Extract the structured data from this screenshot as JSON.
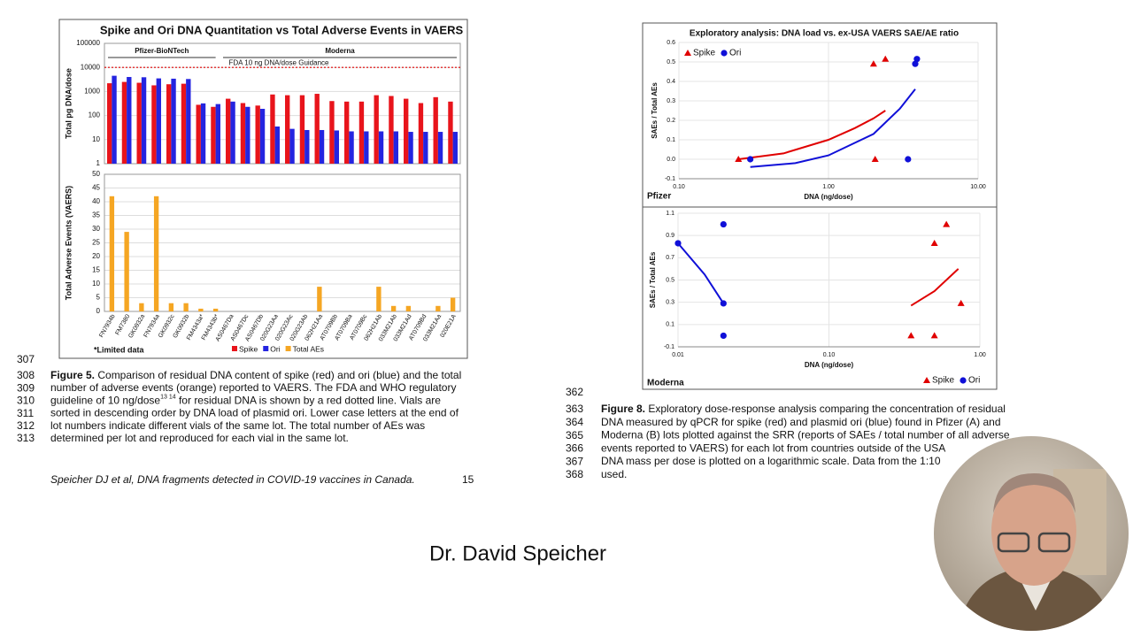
{
  "chart_data": [
    {
      "type": "bar",
      "title": "Spike and Ori DNA Quantitation vs Total Adverse Events in VAERS",
      "y_label": "Total pg DNA/dose",
      "log_scale": true,
      "grid": true,
      "ylim": [
        1,
        100000
      ],
      "yticks": [
        1,
        10,
        100,
        1000,
        10000,
        100000
      ],
      "groups": [
        "Pfizer-BioNTech",
        "Moderna"
      ],
      "reference_line": {
        "value": 10000,
        "label": "FDA 10 ng DNA/dose Guidance",
        "color": "#e00000"
      },
      "series": [
        {
          "name": "Spike",
          "color": "#e8141b",
          "values": [
            2200,
            2500,
            2300,
            1800,
            2000,
            2100,
            280,
            230,
            500,
            330,
            260,
            750,
            700,
            700,
            800,
            400,
            380,
            380,
            700,
            650,
            500,
            330,
            580,
            380
          ]
        },
        {
          "name": "Ori",
          "color": "#2424e0",
          "values": [
            4500,
            4000,
            3900,
            3500,
            3400,
            3300,
            320,
            300,
            380,
            230,
            190,
            35,
            28,
            25,
            25,
            24,
            22,
            22,
            22,
            22,
            21,
            21,
            21,
            21
          ]
        }
      ]
    },
    {
      "type": "bar",
      "y_label": "Total Adverse Events (VAERS)",
      "grid": true,
      "ylim": [
        0,
        50
      ],
      "yticks": [
        0,
        5,
        10,
        15,
        20,
        25,
        30,
        35,
        40,
        45,
        50
      ],
      "note": "*Limited data",
      "categories": [
        "FN7934b",
        "FM7380",
        "GK0932a",
        "FN7934a",
        "GK0932c",
        "GK0932b",
        "FM4343a*",
        "FM4343b*",
        "AS0467Da",
        "AS0467Dc",
        "AS0467Db",
        "020G23Aa",
        "020G23Ac",
        "020G23Ab",
        "062H21Aa",
        "AT0709Bb",
        "AT0709Ba",
        "AT0709Bc",
        "062H21Ab",
        "033M21Ab",
        "033M21Ad",
        "AT0709Bd",
        "033M21Aa",
        "020E21A"
      ],
      "series": [
        {
          "name": "Total AEs",
          "color": "#f5a623",
          "values": [
            42,
            29,
            3,
            42,
            3,
            3,
            1,
            1,
            0,
            0,
            0,
            0,
            0,
            0,
            9,
            0,
            0,
            0,
            9,
            2,
            2,
            0,
            2,
            5
          ]
        }
      ]
    },
    {
      "type": "scatter",
      "title": "Exploratory analysis: DNA load vs. ex-USA VAERS SAE/AE ratio",
      "panel": "Pfizer",
      "x_label": "DNA (ng/dose)",
      "y_label": "SAEs / Total AEs",
      "log_x": true,
      "grid": true,
      "legend": "top-left",
      "xlim": [
        0.1,
        10
      ],
      "xticks": [
        {
          "value": 0.1,
          "label": "0.10"
        },
        {
          "value": 1,
          "label": "1.00"
        },
        {
          "value": 10,
          "label": "10.00"
        }
      ],
      "ylim": [
        -0.1,
        0.6
      ],
      "yticks": [
        -0.1,
        {
          "value": 0,
          "label": "0.0"
        },
        0.1,
        0.2,
        0.3,
        0.4,
        0.5,
        0.6
      ],
      "series": [
        {
          "name": "Spike",
          "color": "#e00000",
          "marker": "triangle",
          "x": [
            0.25,
            2.0,
            2.4,
            2.05
          ],
          "values": [
            0,
            0.49,
            0.515,
            0
          ]
        },
        {
          "name": "Ori",
          "color": "#1010d8",
          "marker": "circle",
          "x": [
            0.3,
            3.8,
            3.9,
            3.4
          ],
          "values": [
            0,
            0.49,
            0.515,
            0
          ]
        }
      ],
      "trendlines": [
        {
          "color": "#e00000",
          "x": [
            0.25,
            0.5,
            1,
            1.5,
            2,
            2.4
          ],
          "values": [
            0,
            0.03,
            0.1,
            0.16,
            0.21,
            0.25
          ]
        },
        {
          "color": "#1010d8",
          "x": [
            0.3,
            0.6,
            1,
            2,
            3,
            3.8
          ],
          "values": [
            -0.04,
            -0.02,
            0.02,
            0.13,
            0.26,
            0.36
          ]
        }
      ]
    },
    {
      "type": "scatter",
      "panel": "Moderna",
      "x_label": "DNA (ng/dose)",
      "y_label": "SAEs / Total AEs",
      "log_x": true,
      "grid": true,
      "legend": "bottom-right",
      "xlim": [
        0.01,
        1
      ],
      "xticks": [
        0.01,
        {
          "value": 0.1,
          "label": "0.10"
        },
        {
          "value": 1,
          "label": "1.00"
        }
      ],
      "ylim": [
        -0.1,
        1.1
      ],
      "yticks": [
        -0.1,
        0.1,
        0.3,
        0.5,
        0.7,
        0.9,
        1.1
      ],
      "series": [
        {
          "name": "Spike",
          "color": "#e00000",
          "marker": "triangle",
          "x": [
            0.5,
            0.6,
            0.75,
            0.35,
            0.5
          ],
          "values": [
            0.83,
            1.0,
            0.29,
            0,
            0
          ]
        },
        {
          "name": "Ori",
          "color": "#1010d8",
          "marker": "circle",
          "x": [
            0.01,
            0.02,
            0.02,
            0.02
          ],
          "values": [
            0.83,
            1.0,
            0.29,
            0
          ]
        }
      ],
      "trendlines": [
        {
          "color": "#e00000",
          "x": [
            0.35,
            0.5,
            0.72
          ],
          "values": [
            0.27,
            0.4,
            0.6
          ]
        },
        {
          "color": "#1010d8",
          "x": [
            0.01,
            0.015,
            0.02
          ],
          "values": [
            0.83,
            0.55,
            0.29
          ]
        }
      ]
    }
  ],
  "left_caption": {
    "lines": [
      {
        "num": "307"
      },
      {
        "num": "308",
        "bold": "Figure 5.",
        "text": " Comparison of residual DNA content of spike (red) and ori (blue) and the total"
      },
      {
        "num": "309",
        "text": "number of adverse events (orange) reported to VAERS. The FDA and WHO regulatory"
      },
      {
        "num": "310",
        "text": "guideline of 10 ng/dose",
        "sup": "13 14",
        "after": " for residual DNA is shown by a red dotted line. Vials are"
      },
      {
        "num": "311",
        "text": "sorted in descending order by DNA load of plasmid ori. Lower case letters at the end of"
      },
      {
        "num": "312",
        "text": "lot numbers indicate different vials of the same lot. The total number of AEs was"
      },
      {
        "num": "313",
        "text": "determined per lot and reproduced for each vial in the same lot."
      }
    ]
  },
  "footer": {
    "citation": "Speicher DJ et al, DNA fragments detected in COVID-19 vaccines in Canada.",
    "page": "15"
  },
  "right_caption": {
    "lines": [
      {
        "num": "362"
      },
      {
        "num": "363",
        "bold": "Figure 8.",
        "text": " Exploratory dose-response analysis comparing the concentration of residual"
      },
      {
        "num": "364",
        "text": "DNA measured by qPCR for spike (red) and plasmid ori (blue) found in Pfizer (A) and"
      },
      {
        "num": "365",
        "text": "Moderna (B) lots plotted against the SRR (reports of SAEs / total number of all adverse"
      },
      {
        "num": "366",
        "text": "events reported to VAERS) for each lot from countries outside of the USA"
      },
      {
        "num": "367",
        "text": "DNA mass per dose is plotted on a logarithmic scale. Data from the 1:10"
      },
      {
        "num": "368",
        "text": "used."
      }
    ]
  },
  "speaker": "Dr. David Speicher"
}
